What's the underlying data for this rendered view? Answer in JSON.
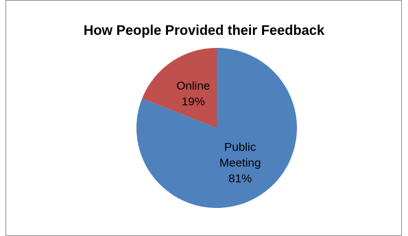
{
  "chart_data": {
    "type": "pie",
    "title": "How People Provided their Feedback",
    "slices": [
      {
        "label": "Public Meeting",
        "percent_label": "81%",
        "value": 81,
        "color": "#4f81bd"
      },
      {
        "label": "Online",
        "percent_label": "19%",
        "value": 19,
        "color": "#c0504d"
      }
    ]
  }
}
